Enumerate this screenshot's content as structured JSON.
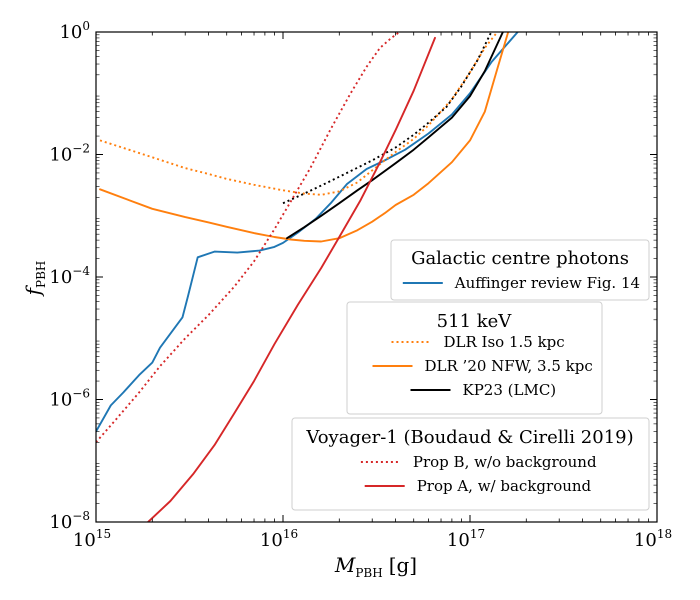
{
  "chart_data": {
    "type": "line",
    "title": "",
    "xlabel": {
      "main": "M",
      "sub": "PBH",
      "unit": "[g]"
    },
    "ylabel": {
      "main": "f",
      "sub": "PBH"
    },
    "xscale": "log",
    "yscale": "log",
    "xlim": [
      1000000000000000.0,
      1e+18
    ],
    "ylim": [
      1e-08,
      1
    ],
    "grid": false,
    "x_ticks": [
      {
        "base": "10",
        "exp": "15",
        "value": 1000000000000000.0
      },
      {
        "base": "10",
        "exp": "16",
        "value": 1e+16
      },
      {
        "base": "10",
        "exp": "17",
        "value": 1e+17
      },
      {
        "base": "10",
        "exp": "18",
        "value": 1e+18
      }
    ],
    "y_ticks": [
      {
        "base": "10",
        "exp": "−8",
        "value": 1e-08
      },
      {
        "base": "10",
        "exp": "−6",
        "value": 1e-06
      },
      {
        "base": "10",
        "exp": "−4",
        "value": 0.0001
      },
      {
        "base": "10",
        "exp": "−2",
        "value": 0.01
      },
      {
        "base": "10",
        "exp": "0",
        "value": 1
      }
    ],
    "legends": [
      {
        "title": "Galactic centre photons",
        "position": "right",
        "entries": [
          "Auffinger review Fig. 14"
        ]
      },
      {
        "title": "511 keV",
        "position": "center-right",
        "entries": [
          "DLR Iso 1.5 kpc",
          "DLR ’20 NFW, 3.5 kpc",
          "KP23 (LMC)"
        ]
      },
      {
        "title": "Voyager-1 (Boudaud & Cirelli 2019)",
        "position": "bottom-right",
        "entries": [
          "Prop B, w/o background",
          "Prop A, w/ background"
        ]
      }
    ],
    "series": [
      {
        "name": "Auffinger review Fig. 14",
        "color": "#1f77b4",
        "dash": "solid",
        "x": [
          1000000000000000.0,
          1200000000000000.0,
          1400000000000000.0,
          1700000000000000.0,
          2000000000000000.0,
          2200000000000000.0,
          2600000000000000.0,
          2900000000000000.0,
          3100000000000000.0,
          3500000000000000.0,
          4300000000000000.0,
          5700000000000000.0,
          7500000000000000.0,
          9000000000000000.0,
          1e+16,
          1.2e+16,
          1.5e+16,
          1.8e+16,
          2.2e+16,
          2.8e+16,
          3.5e+16,
          4.5e+16,
          6e+16,
          8e+16,
          1e+17,
          1.3e+17,
          1.8e+17
        ],
        "y": [
          3e-07,
          8e-07,
          1.3e-06,
          2.5e-06,
          4e-06,
          7e-06,
          1.4e-05,
          2.2e-05,
          4.8e-05,
          0.00021,
          0.00026,
          0.00025,
          0.00027,
          0.00031,
          0.00036,
          0.00053,
          0.0009,
          0.0016,
          0.0033,
          0.0058,
          0.008,
          0.012,
          0.022,
          0.045,
          0.1,
          0.32,
          1
        ]
      },
      {
        "name": "DLR Iso 1.5 kpc",
        "color": "#ff7f0e",
        "dash": "dotted",
        "x": [
          1050000000000000.0,
          1500000000000000.0,
          2000000000000000.0,
          3000000000000000.0,
          4000000000000000.0,
          5000000000000000.0,
          7000000000000000.0,
          1e+16,
          1.3e+16,
          1.6e+16,
          2e+16,
          2.5e+16,
          3e+16,
          3.5e+16,
          4e+16,
          5e+16,
          6e+16,
          8e+16,
          1e+17,
          1.2e+17,
          1.4e+17
        ],
        "y": [
          0.017,
          0.012,
          0.009,
          0.006,
          0.0048,
          0.004,
          0.0032,
          0.0026,
          0.0023,
          0.0022,
          0.0025,
          0.0035,
          0.0055,
          0.008,
          0.011,
          0.018,
          0.03,
          0.08,
          0.22,
          0.55,
          1
        ]
      },
      {
        "name": "DLR ’20 NFW, 3.5 kpc",
        "color": "#ff7f0e",
        "dash": "solid",
        "x": [
          1050000000000000.0,
          1500000000000000.0,
          2000000000000000.0,
          3000000000000000.0,
          4000000000000000.0,
          5000000000000000.0,
          7000000000000000.0,
          9000000000000000.0,
          1.1e+16,
          1.3e+16,
          1.6e+16,
          2e+16,
          2.5e+16,
          3e+16,
          3.5e+16,
          4e+16,
          5e+16,
          6e+16,
          8e+16,
          1e+17,
          1.2e+17,
          1.4e+17,
          1.6e+17
        ],
        "y": [
          0.0027,
          0.0018,
          0.0013,
          0.00095,
          0.00078,
          0.00066,
          0.00052,
          0.00045,
          0.00041,
          0.00039,
          0.00038,
          0.00043,
          0.00058,
          0.0008,
          0.0011,
          0.0015,
          0.0022,
          0.0034,
          0.0075,
          0.017,
          0.05,
          0.25,
          1
        ]
      },
      {
        "name": "KP23 (LMC)",
        "color": "#000000",
        "dash": "solid",
        "x": [
          1.05e+16,
          1.3e+16,
          1.6e+16,
          2e+16,
          2.5e+16,
          3e+16,
          4e+16,
          5e+16,
          6e+16,
          8e+16,
          1e+17,
          1.2e+17,
          1.5e+17
        ],
        "y": [
          0.00043,
          0.00065,
          0.001,
          0.0016,
          0.0026,
          0.0038,
          0.0072,
          0.012,
          0.019,
          0.04,
          0.09,
          0.23,
          1
        ]
      },
      {
        "name": "KP23 (LMC) extension",
        "color": "#000000",
        "dash": "dotted",
        "x": [
          1e+16,
          1.3e+16,
          1.7e+16,
          2.2e+16,
          3e+16,
          4e+16,
          5e+16,
          6e+16,
          7.5e+16,
          9e+16,
          1.1e+17,
          1.3e+17
        ],
        "y": [
          0.0016,
          0.0023,
          0.0034,
          0.005,
          0.008,
          0.013,
          0.021,
          0.033,
          0.06,
          0.13,
          0.35,
          1
        ]
      },
      {
        "name": "Prop B, w/o background",
        "color": "#d62728",
        "dash": "dotted",
        "x": [
          1000000000000000.0,
          1300000000000000.0,
          1700000000000000.0,
          2200000000000000.0,
          3000000000000000.0,
          4000000000000000.0,
          5500000000000000.0,
          7000000000000000.0,
          9000000000000000.0,
          1.1e+16,
          1.4e+16,
          1.8e+16,
          2.3e+16,
          2.8e+16,
          3.3e+16,
          3.8e+16,
          4.2e+16
        ],
        "y": [
          2e-07,
          5e-07,
          1.3e-06,
          3.5e-06,
          1e-05,
          2.4e-05,
          7e-05,
          0.00018,
          0.0006,
          0.0017,
          0.006,
          0.026,
          0.1,
          0.27,
          0.55,
          0.8,
          1
        ]
      },
      {
        "name": "Prop A, w/ background",
        "color": "#d62728",
        "dash": "solid",
        "x": [
          1900000000000000.0,
          2500000000000000.0,
          3300000000000000.0,
          4300000000000000.0,
          5500000000000000.0,
          7000000000000000.0,
          9000000000000000.0,
          1.2e+16,
          1.6e+16,
          2e+16,
          2.6e+16,
          3.3e+16,
          4e+16,
          5e+16,
          6.5e+16
        ],
        "y": [
          1e-08,
          2.2e-08,
          6e-08,
          1.8e-07,
          6e-07,
          2e-06,
          8e-06,
          3.5e-05,
          0.00014,
          0.00045,
          0.0018,
          0.0075,
          0.025,
          0.11,
          0.8
        ]
      }
    ]
  }
}
